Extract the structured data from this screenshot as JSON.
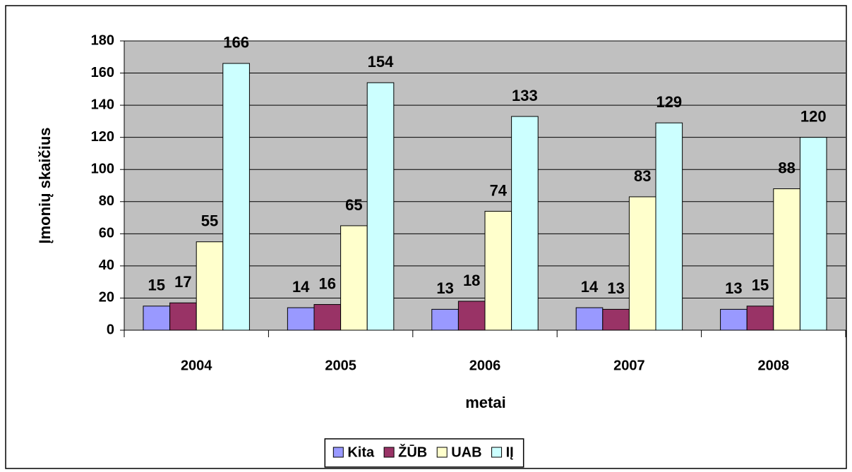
{
  "chart_data": {
    "type": "bar",
    "categories": [
      "2004",
      "2005",
      "2006",
      "2007",
      "2008"
    ],
    "series": [
      {
        "name": "Kita",
        "color": "#9999ff",
        "values": [
          15,
          14,
          13,
          14,
          13
        ]
      },
      {
        "name": "ŽŪB",
        "color": "#993366",
        "values": [
          17,
          16,
          18,
          13,
          15
        ]
      },
      {
        "name": "UAB",
        "color": "#ffffcc",
        "values": [
          55,
          65,
          74,
          83,
          88
        ]
      },
      {
        "name": "IĮ",
        "color": "#ccffff",
        "values": [
          166,
          154,
          133,
          129,
          120
        ]
      }
    ],
    "x_label": "metai",
    "y_label": "Įmonių skaičius",
    "ylim": [
      0,
      180
    ],
    "yticks": [
      0,
      20,
      40,
      60,
      80,
      100,
      120,
      140,
      160,
      180
    ],
    "grid": true,
    "legend": "bottom"
  }
}
